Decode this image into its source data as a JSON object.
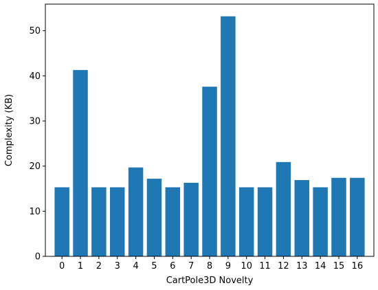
{
  "chart_data": {
    "type": "bar",
    "categories": [
      "0",
      "1",
      "2",
      "3",
      "4",
      "5",
      "6",
      "7",
      "8",
      "9",
      "10",
      "11",
      "12",
      "13",
      "14",
      "15",
      "16"
    ],
    "values": [
      15.3,
      41.3,
      15.3,
      15.3,
      19.7,
      17.2,
      15.3,
      16.3,
      37.6,
      53.2,
      15.3,
      15.3,
      20.9,
      16.9,
      15.3,
      17.4,
      17.4
    ],
    "xlabel": "CartPole3D Novelty",
    "ylabel": "Complexity (KB)",
    "ylim": [
      0,
      55.9
    ],
    "yticks": [
      0,
      10,
      20,
      30,
      40,
      50
    ],
    "grid": false,
    "bar_color": "#1f77b4"
  }
}
